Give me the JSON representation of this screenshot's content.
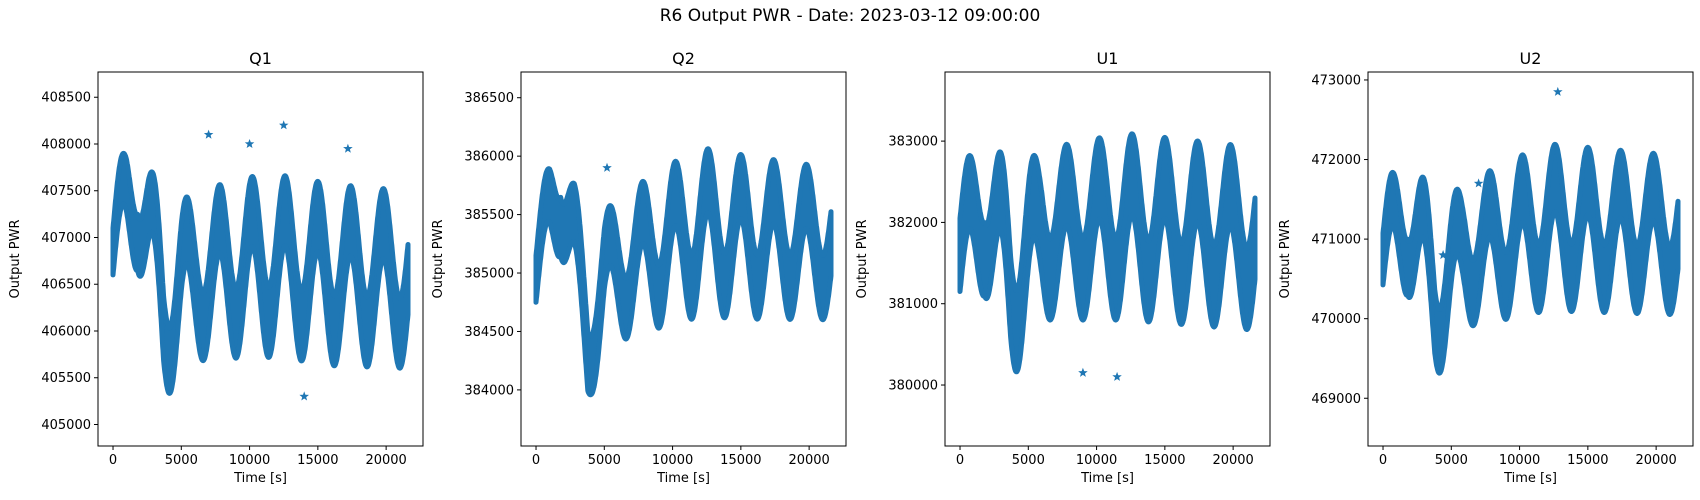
{
  "figure": {
    "suptitle": "R6 Output PWR - Date: 2023-03-12 09:00:00"
  },
  "chart_data": [
    {
      "type": "scatter",
      "title": "Q1",
      "xlabel": "Time [s]",
      "ylabel": "Output PWR",
      "marker": "star",
      "color": "#1f77b4",
      "xlim": [
        -1100,
        22700
      ],
      "ylim": [
        404770,
        408770
      ],
      "xticks": [
        0,
        5000,
        10000,
        15000,
        20000
      ],
      "yticks": [
        405000,
        405500,
        406000,
        406500,
        407000,
        407500,
        408000,
        408500
      ],
      "x_range": [
        0,
        21600
      ],
      "osc_period_s": 2400,
      "mean": [
        [
          0,
          406850
        ],
        [
          1000,
          407300
        ],
        [
          1800,
          407500
        ],
        [
          2600,
          407000
        ],
        [
          3700,
          406200
        ],
        [
          5000,
          406500
        ],
        [
          8000,
          406650
        ],
        [
          12000,
          406700
        ],
        [
          16000,
          406600
        ],
        [
          21600,
          406550
        ]
      ],
      "amp": [
        [
          0,
          850
        ],
        [
          1800,
          1100
        ],
        [
          3700,
          1300
        ],
        [
          6000,
          1050
        ],
        [
          10000,
          1200
        ],
        [
          15000,
          1200
        ],
        [
          21600,
          1150
        ]
      ],
      "band": [
        [
          0,
          500
        ],
        [
          1800,
          600
        ],
        [
          4000,
          700
        ],
        [
          10000,
          750
        ],
        [
          21600,
          750
        ]
      ],
      "outliers": [
        [
          7000,
          408100
        ],
        [
          10000,
          408000
        ],
        [
          12500,
          408200
        ],
        [
          14000,
          405300
        ],
        [
          17200,
          407950
        ]
      ]
    },
    {
      "type": "scatter",
      "title": "Q2",
      "xlabel": "Time [s]",
      "ylabel": "Output PWR",
      "marker": "star",
      "color": "#1f77b4",
      "xlim": [
        -1100,
        22700
      ],
      "ylim": [
        383520,
        386720
      ],
      "xticks": [
        0,
        5000,
        10000,
        15000,
        20000
      ],
      "yticks": [
        384000,
        384500,
        385000,
        385500,
        386000,
        386500
      ],
      "x_range": [
        0,
        21600
      ],
      "osc_period_s": 2400,
      "mean": [
        [
          0,
          384950
        ],
        [
          1000,
          385500
        ],
        [
          1800,
          385800
        ],
        [
          2800,
          385200
        ],
        [
          3800,
          384400
        ],
        [
          5000,
          384950
        ],
        [
          8000,
          385150
        ],
        [
          12000,
          385350
        ],
        [
          16000,
          385300
        ],
        [
          21600,
          385250
        ]
      ],
      "amp": [
        [
          0,
          450
        ],
        [
          1800,
          800
        ],
        [
          3800,
          650
        ],
        [
          6000,
          700
        ],
        [
          12000,
          900
        ],
        [
          21600,
          750
        ]
      ],
      "band": [
        [
          0,
          400
        ],
        [
          1800,
          500
        ],
        [
          4000,
          500
        ],
        [
          10000,
          550
        ],
        [
          21600,
          550
        ]
      ],
      "outliers": [
        [
          5200,
          385900
        ]
      ]
    },
    {
      "type": "scatter",
      "title": "U1",
      "xlabel": "Time [s]",
      "ylabel": "Output PWR",
      "marker": "star",
      "color": "#1f77b4",
      "xlim": [
        -1100,
        22700
      ],
      "ylim": [
        379250,
        383850
      ],
      "xticks": [
        0,
        5000,
        10000,
        15000,
        20000
      ],
      "yticks": [
        380000,
        381000,
        382000,
        383000
      ],
      "x_range": [
        0,
        21600
      ],
      "osc_period_s": 2400,
      "mean": [
        [
          0,
          381600
        ],
        [
          1800,
          382200
        ],
        [
          3700,
          381300
        ],
        [
          6000,
          381850
        ],
        [
          12000,
          381950
        ],
        [
          21600,
          381800
        ]
      ],
      "amp": [
        [
          0,
          1000
        ],
        [
          1800,
          1300
        ],
        [
          3700,
          1600
        ],
        [
          6000,
          1100
        ],
        [
          12000,
          1300
        ],
        [
          21600,
          1250
        ]
      ],
      "band": [
        [
          0,
          900
        ],
        [
          1800,
          900
        ],
        [
          4000,
          1000
        ],
        [
          10000,
          1000
        ],
        [
          21600,
          1000
        ]
      ],
      "outliers": [
        [
          9000,
          380150
        ],
        [
          11500,
          380100
        ]
      ]
    },
    {
      "type": "scatter",
      "title": "U2",
      "xlabel": "Time [s]",
      "ylabel": "Output PWR",
      "marker": "star",
      "color": "#1f77b4",
      "xlim": [
        -1100,
        22700
      ],
      "ylim": [
        468400,
        473100
      ],
      "xticks": [
        0,
        5000,
        10000,
        15000,
        20000
      ],
      "yticks": [
        469000,
        470000,
        471000,
        472000,
        473000
      ],
      "x_range": [
        0,
        21600
      ],
      "osc_period_s": 2400,
      "mean": [
        [
          0,
          470750
        ],
        [
          1800,
          471300
        ],
        [
          3800,
          470300
        ],
        [
          6000,
          470800
        ],
        [
          12000,
          471150
        ],
        [
          21600,
          471050
        ]
      ],
      "amp": [
        [
          0,
          1000
        ],
        [
          1800,
          1300
        ],
        [
          3800,
          1400
        ],
        [
          6000,
          1000
        ],
        [
          12000,
          1250
        ],
        [
          21600,
          1150
        ]
      ],
      "band": [
        [
          0,
          650
        ],
        [
          1800,
          700
        ],
        [
          4000,
          800
        ],
        [
          10000,
          850
        ],
        [
          21600,
          850
        ]
      ],
      "outliers": [
        [
          12800,
          472850
        ],
        [
          4400,
          470800
        ],
        [
          7000,
          471700
        ]
      ]
    }
  ]
}
